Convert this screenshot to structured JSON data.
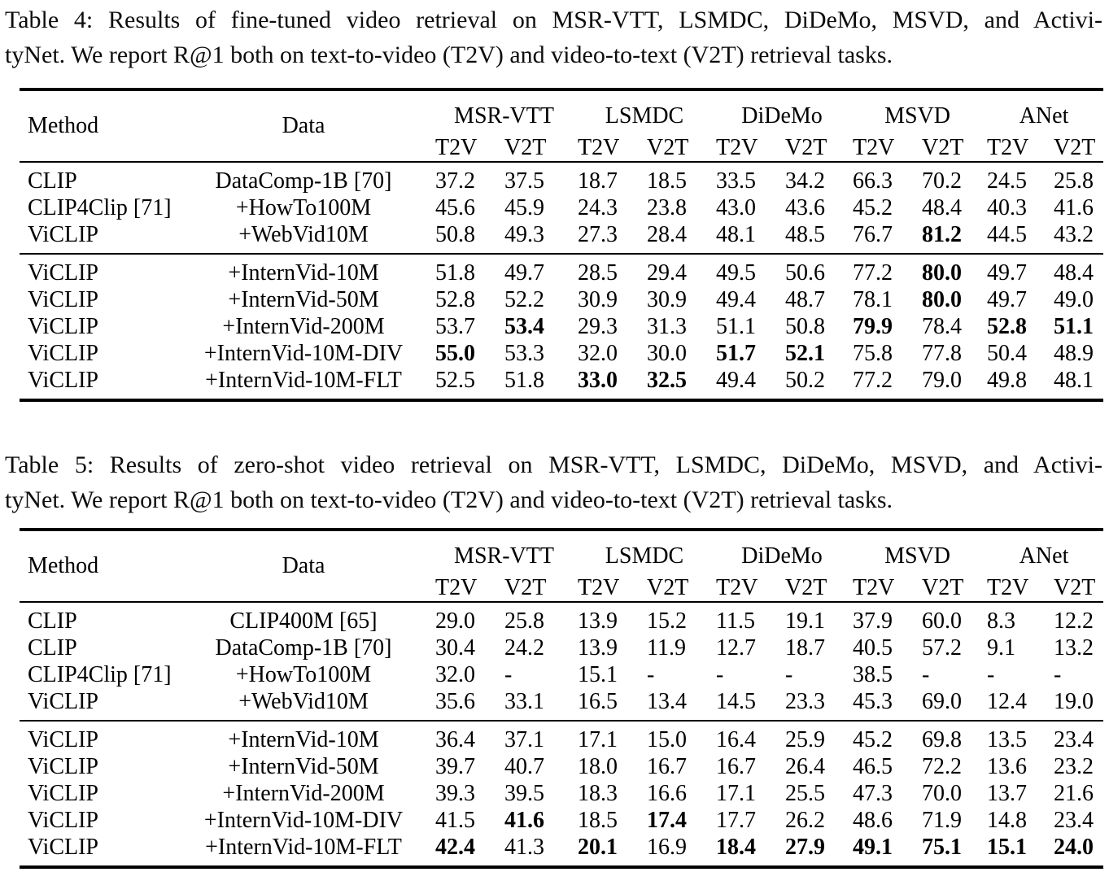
{
  "page": {
    "background": "#ffffff",
    "text_color": "#000000"
  },
  "tables": [
    {
      "name": "table4",
      "caption": {
        "line1": "Table 4: Results of fine-tuned video retrieval on MSR-VTT, LSMDC, DiDeMo, MSVD, and Activi-",
        "line2": "tyNet. We report R@1 both on text-to-video (T2V) and video-to-text (V2T) retrieval tasks."
      },
      "header": {
        "method": "Method",
        "data": "Data",
        "groups": [
          "MSR-VTT",
          "LSMDC",
          "DiDeMo",
          "MSVD",
          "ANet"
        ],
        "metrics": [
          "T2V",
          "V2T"
        ]
      },
      "blocks": [
        [
          {
            "method": "CLIP",
            "data": "DataComp-1B [70]",
            "values": [
              "37.2",
              "37.5",
              "18.7",
              "18.5",
              "33.5",
              "34.2",
              "66.3",
              "70.2",
              "24.5",
              "25.8"
            ],
            "bold": []
          },
          {
            "method": "CLIP4Clip [71]",
            "data": "+HowTo100M",
            "values": [
              "45.6",
              "45.9",
              "24.3",
              "23.8",
              "43.0",
              "43.6",
              "45.2",
              "48.4",
              "40.3",
              "41.6"
            ],
            "bold": []
          },
          {
            "method": "ViCLIP",
            "data": "+WebVid10M",
            "values": [
              "50.8",
              "49.3",
              "27.3",
              "28.4",
              "48.1",
              "48.5",
              "76.7",
              "81.2",
              "44.5",
              "43.2"
            ],
            "bold": [
              7
            ]
          }
        ],
        [
          {
            "method": "ViCLIP",
            "data": "+InternVid-10M",
            "values": [
              "51.8",
              "49.7",
              "28.5",
              "29.4",
              "49.5",
              "50.6",
              "77.2",
              "80.0",
              "49.7",
              "48.4"
            ],
            "bold": [
              7
            ]
          },
          {
            "method": "ViCLIP",
            "data": "+InternVid-50M",
            "values": [
              "52.8",
              "52.2",
              "30.9",
              "30.9",
              "49.4",
              "48.7",
              "78.1",
              "80.0",
              "49.7",
              "49.0"
            ],
            "bold": [
              7
            ]
          },
          {
            "method": "ViCLIP",
            "data": "+InternVid-200M",
            "values": [
              "53.7",
              "53.4",
              "29.3",
              "31.3",
              "51.1",
              "50.8",
              "79.9",
              "78.4",
              "52.8",
              "51.1"
            ],
            "bold": [
              1,
              6,
              8,
              9
            ]
          },
          {
            "method": "ViCLIP",
            "data": "+InternVid-10M-DIV",
            "values": [
              "55.0",
              "53.3",
              "32.0",
              "30.0",
              "51.7",
              "52.1",
              "75.8",
              "77.8",
              "50.4",
              "48.9"
            ],
            "bold": [
              0,
              4,
              5
            ]
          },
          {
            "method": "ViCLIP",
            "data": "+InternVid-10M-FLT",
            "values": [
              "52.5",
              "51.8",
              "33.0",
              "32.5",
              "49.4",
              "50.2",
              "77.2",
              "79.0",
              "49.8",
              "48.1"
            ],
            "bold": [
              2,
              3
            ]
          }
        ]
      ]
    },
    {
      "name": "table5",
      "caption": {
        "line1": "Table 5: Results of zero-shot video retrieval on MSR-VTT, LSMDC, DiDeMo, MSVD, and Activi-",
        "line2": "tyNet. We report R@1 both on text-to-video (T2V) and video-to-text (V2T) retrieval tasks."
      },
      "header": {
        "method": "Method",
        "data": "Data",
        "groups": [
          "MSR-VTT",
          "LSMDC",
          "DiDeMo",
          "MSVD",
          "ANet"
        ],
        "metrics": [
          "T2V",
          "V2T"
        ]
      },
      "blocks": [
        [
          {
            "method": "CLIP",
            "data": "CLIP400M [65]",
            "values": [
              "29.0",
              "25.8",
              "13.9",
              "15.2",
              "11.5",
              "19.1",
              "37.9",
              "60.0",
              "8.3",
              "12.2"
            ],
            "bold": []
          },
          {
            "method": "CLIP",
            "data": "DataComp-1B [70]",
            "values": [
              "30.4",
              "24.2",
              "13.9",
              "11.9",
              "12.7",
              "18.7",
              "40.5",
              "57.2",
              "9.1",
              "13.2"
            ],
            "bold": []
          },
          {
            "method": "CLIP4Clip [71]",
            "data": "+HowTo100M",
            "values": [
              "32.0",
              "-",
              "15.1",
              "-",
              "-",
              "-",
              "38.5",
              "-",
              "-",
              "-"
            ],
            "bold": []
          },
          {
            "method": "ViCLIP",
            "data": "+WebVid10M",
            "values": [
              "35.6",
              "33.1",
              "16.5",
              "13.4",
              "14.5",
              "23.3",
              "45.3",
              "69.0",
              "12.4",
              "19.0"
            ],
            "bold": []
          }
        ],
        [
          {
            "method": "ViCLIP",
            "data": "+InternVid-10M",
            "values": [
              "36.4",
              "37.1",
              "17.1",
              "15.0",
              "16.4",
              "25.9",
              "45.2",
              "69.8",
              "13.5",
              "23.4"
            ],
            "bold": []
          },
          {
            "method": "ViCLIP",
            "data": "+InternVid-50M",
            "values": [
              "39.7",
              "40.7",
              "18.0",
              "16.7",
              "16.7",
              "26.4",
              "46.5",
              "72.2",
              "13.6",
              "23.2"
            ],
            "bold": []
          },
          {
            "method": "ViCLIP",
            "data": "+InternVid-200M",
            "values": [
              "39.3",
              "39.5",
              "18.3",
              "16.6",
              "17.1",
              "25.5",
              "47.3",
              "70.0",
              "13.7",
              "21.6"
            ],
            "bold": []
          },
          {
            "method": "ViCLIP",
            "data": "+InternVid-10M-DIV",
            "values": [
              "41.5",
              "41.6",
              "18.5",
              "17.4",
              "17.7",
              "26.2",
              "48.6",
              "71.9",
              "14.8",
              "23.4"
            ],
            "bold": [
              1,
              3
            ]
          },
          {
            "method": "ViCLIP",
            "data": "+InternVid-10M-FLT",
            "values": [
              "42.4",
              "41.3",
              "20.1",
              "16.9",
              "18.4",
              "27.9",
              "49.1",
              "75.1",
              "15.1",
              "24.0"
            ],
            "bold": [
              0,
              2,
              4,
              5,
              6,
              7,
              8,
              9
            ]
          }
        ]
      ]
    }
  ]
}
